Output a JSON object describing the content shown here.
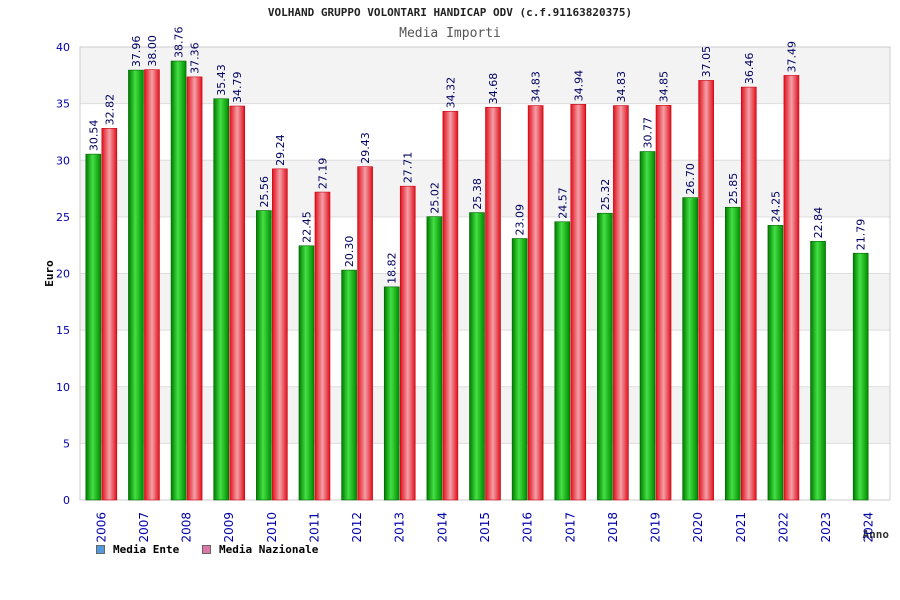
{
  "chart_data": {
    "type": "bar",
    "title": "VOLHAND GRUPPO VOLONTARI HANDICAP ODV (c.f.91163820375)",
    "subtitle": "Media Importi",
    "xlabel": "Anno",
    "ylabel": "Euro",
    "ylim": [
      0,
      40
    ],
    "yticks": [
      0,
      5,
      10,
      15,
      20,
      25,
      30,
      35,
      40
    ],
    "categories": [
      "2006",
      "2007",
      "2008",
      "2009",
      "2010",
      "2011",
      "2012",
      "2013",
      "2014",
      "2015",
      "2016",
      "2017",
      "2018",
      "2019",
      "2020",
      "2021",
      "2022",
      "2023",
      "2024"
    ],
    "series": [
      {
        "name": "Media Ente",
        "color": "#00a000",
        "legend_color": "#5599dd",
        "values": [
          30.54,
          37.96,
          38.76,
          35.43,
          25.56,
          22.45,
          20.3,
          18.82,
          25.02,
          25.38,
          23.09,
          24.57,
          25.32,
          30.77,
          26.7,
          25.85,
          24.25,
          22.84,
          21.79
        ],
        "labels": [
          "30.54",
          "37.96",
          "38.76",
          "35.43",
          "25.56",
          "22.45",
          "20.30",
          "18.82",
          "25.02",
          "25.38",
          "23.09",
          "24.57",
          "25.32",
          "30.77",
          "26.70",
          "25.85",
          "24.25",
          "22.84",
          "21.79"
        ]
      },
      {
        "name": "Media Nazionale",
        "color": "#e8202a",
        "legend_color": "#dd77aa",
        "values": [
          32.82,
          38.0,
          37.36,
          34.79,
          29.24,
          27.19,
          29.43,
          27.71,
          34.32,
          34.68,
          34.83,
          34.94,
          34.83,
          34.85,
          37.05,
          36.46,
          37.49,
          null,
          null
        ],
        "labels": [
          "32.82",
          "38.00",
          "37.36",
          "34.79",
          "29.24",
          "27.19",
          "29.43",
          "27.71",
          "34.32",
          "34.68",
          "34.83",
          "34.94",
          "34.83",
          "34.85",
          "37.05",
          "36.46",
          "37.49",
          null,
          null
        ]
      }
    ],
    "grid": true,
    "legend_position": "bottom-left"
  }
}
